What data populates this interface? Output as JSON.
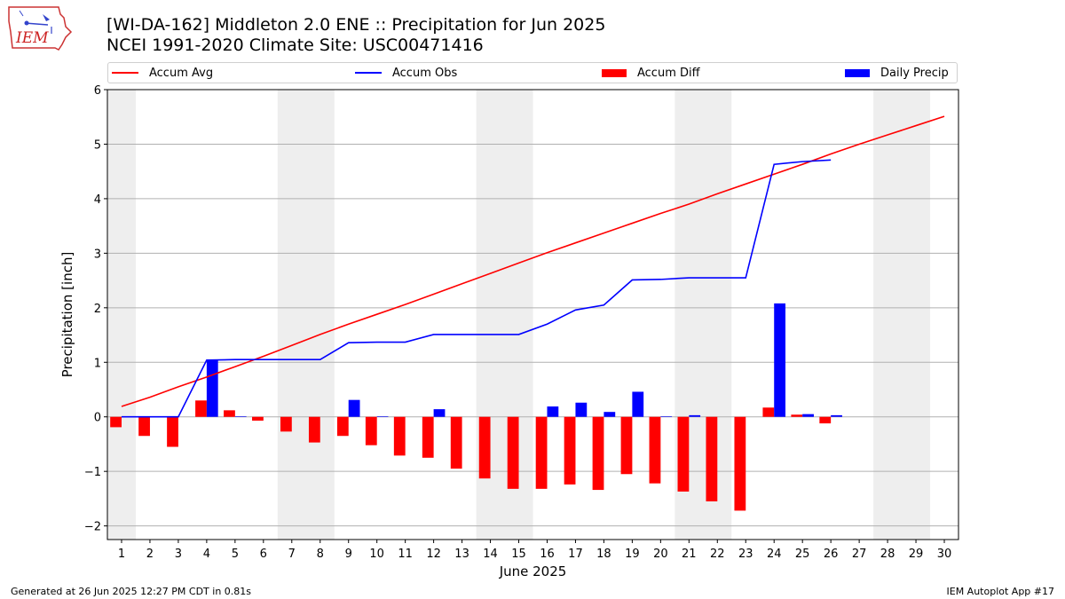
{
  "header": {
    "title_line1": "[WI-DA-162] Middleton 2.0 ENE :: Precipitation for Jun 2025",
    "title_line2": "NCEI 1991-2020 Climate Site: USC00471416",
    "logo_text": "IEM"
  },
  "footer": {
    "left": "Generated at 26 Jun 2025 12:27 PM CDT in 0.81s",
    "right": "IEM Autoplot App #17"
  },
  "colors": {
    "avg": "#ff0000",
    "obs": "#0000ff",
    "diff": "#ff0000",
    "daily": "#0000ff",
    "weekend": "#eeeeee",
    "grid": "#b0b0b0"
  },
  "chart_data": {
    "type": "bar",
    "xlabel": "June 2025",
    "ylabel": "Precipitation [inch]",
    "xlim": [
      0.5,
      30.5
    ],
    "ylim": [
      -2.25,
      6
    ],
    "yticks": [
      -2,
      -1,
      0,
      1,
      2,
      3,
      4,
      5,
      6
    ],
    "ytick_labels": [
      "−2",
      "−1",
      "0",
      "1",
      "2",
      "3",
      "4",
      "5",
      "6"
    ],
    "grid": "horizontal",
    "legend_position": "top",
    "legend": [
      {
        "key": "avg",
        "label": "Accum Avg",
        "kind": "line"
      },
      {
        "key": "obs",
        "label": "Accum Obs",
        "kind": "line"
      },
      {
        "key": "diff",
        "label": "Accum Diff",
        "kind": "bar"
      },
      {
        "key": "daily",
        "label": "Daily Precip",
        "kind": "bar"
      }
    ],
    "days": [
      1,
      2,
      3,
      4,
      5,
      6,
      7,
      8,
      9,
      10,
      11,
      12,
      13,
      14,
      15,
      16,
      17,
      18,
      19,
      20,
      21,
      22,
      23,
      24,
      25,
      26,
      27,
      28,
      29,
      30
    ],
    "shaded_days": [
      [
        1,
        1
      ],
      [
        7,
        8
      ],
      [
        14,
        15
      ],
      [
        21,
        22
      ],
      [
        28,
        29
      ]
    ],
    "series": [
      {
        "key": "avg",
        "name": "Accum Avg",
        "values": [
          0.19,
          0.36,
          0.55,
          0.73,
          0.92,
          1.11,
          1.31,
          1.51,
          1.7,
          1.88,
          2.06,
          2.25,
          2.44,
          2.63,
          2.82,
          3.01,
          3.19,
          3.37,
          3.55,
          3.73,
          3.9,
          4.09,
          4.27,
          4.45,
          4.63,
          4.82,
          5.0,
          5.17,
          5.34,
          5.51
        ]
      },
      {
        "key": "obs",
        "name": "Accum Obs",
        "values": [
          0.0,
          0.0,
          0.0,
          1.04,
          1.05,
          1.05,
          1.05,
          1.05,
          1.36,
          1.37,
          1.37,
          1.51,
          1.51,
          1.51,
          1.51,
          1.7,
          1.96,
          2.05,
          2.51,
          2.52,
          2.55,
          2.55,
          2.55,
          4.63,
          4.68,
          4.71
        ]
      },
      {
        "key": "diff",
        "name": "Accum Diff",
        "values": [
          -0.19,
          -0.35,
          -0.55,
          0.3,
          0.12,
          -0.07,
          -0.27,
          -0.47,
          -0.35,
          -0.52,
          -0.71,
          -0.75,
          -0.95,
          -1.13,
          -1.32,
          -1.32,
          -1.24,
          -1.34,
          -1.05,
          -1.22,
          -1.37,
          -1.55,
          -1.72,
          0.17,
          0.04,
          -0.12
        ]
      },
      {
        "key": "daily",
        "name": "Daily Precip",
        "values": [
          0.0,
          0.0,
          0.0,
          1.04,
          0.01,
          0.0,
          0.0,
          0.0,
          0.31,
          0.01,
          0.0,
          0.14,
          0.0,
          0.0,
          0.0,
          0.19,
          0.26,
          0.09,
          0.46,
          0.01,
          0.03,
          0.0,
          0.0,
          2.08,
          0.05,
          0.03
        ]
      }
    ]
  }
}
